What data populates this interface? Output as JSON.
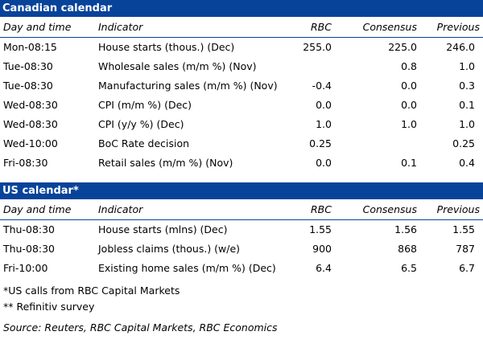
{
  "canadian": {
    "title": "Canadian calendar",
    "headers": {
      "day": "Day and time",
      "indicator": "Indicator",
      "rbc": "RBC",
      "consensus": "Consensus",
      "previous": "Previous"
    },
    "rows": [
      {
        "day": "Mon-08:15",
        "indicator": "House starts (thous.) (Dec)",
        "rbc": "255.0",
        "consensus": "225.0",
        "previous": "246.0"
      },
      {
        "day": "Tue-08:30",
        "indicator": "Wholesale sales (m/m %) (Nov)",
        "rbc": "",
        "consensus": "0.8",
        "previous": "1.0"
      },
      {
        "day": "Tue-08:30",
        "indicator": "Manufacturing sales (m/m %) (Nov)",
        "rbc": "-0.4",
        "consensus": "0.0",
        "previous": "0.3"
      },
      {
        "day": "Wed-08:30",
        "indicator": "CPI (m/m %) (Dec)",
        "rbc": "0.0",
        "consensus": "0.0",
        "previous": "0.1"
      },
      {
        "day": "Wed-08:30",
        "indicator": "CPI (y/y %) (Dec)",
        "rbc": "1.0",
        "consensus": "1.0",
        "previous": "1.0"
      },
      {
        "day": "Wed-10:00",
        "indicator": "BoC Rate decision",
        "rbc": "0.25",
        "consensus": "",
        "previous": "0.25"
      },
      {
        "day": "Fri-08:30",
        "indicator": "Retail sales (m/m %) (Nov)",
        "rbc": "0.0",
        "consensus": "0.1",
        "previous": "0.4"
      }
    ]
  },
  "us": {
    "title": "US calendar*",
    "headers": {
      "day": "Day and time",
      "indicator": "Indicator",
      "rbc": "RBC",
      "consensus": "Consensus",
      "previous": "Previous"
    },
    "rows": [
      {
        "day": "Thu-08:30",
        "indicator": "House starts (mlns) (Dec)",
        "rbc": "1.55",
        "consensus": "1.56",
        "previous": "1.55"
      },
      {
        "day": "Thu-08:30",
        "indicator": "Jobless claims (thous.) (w/e)",
        "rbc": "900",
        "consensus": "868",
        "previous": "787"
      },
      {
        "day": "Fri-10:00",
        "indicator": "Existing home sales (m/m %) (Dec)",
        "rbc": "6.4",
        "consensus": "6.5",
        "previous": "6.7"
      }
    ]
  },
  "notes": {
    "us_calls": "*US calls from RBC Capital Markets",
    "refinitiv": "** Refinitiv survey",
    "source": "Source: Reuters, RBC Capital Markets, RBC Economics"
  }
}
